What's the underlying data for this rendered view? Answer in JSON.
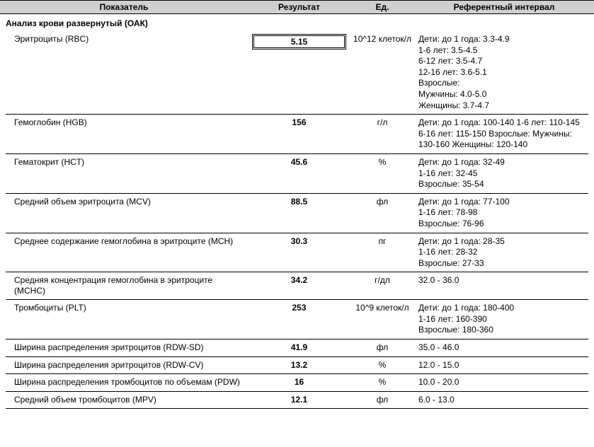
{
  "headers": {
    "param": "Показатель",
    "result": "Результат",
    "unit": "Ед.",
    "ref": "Референтный интервал"
  },
  "section_title": "Анализ крови развернутый (ОАК)",
  "rows": [
    {
      "param": "Эритроциты (RBC)",
      "result": "5.15",
      "boxed": true,
      "unit": "10^12 клеток/л",
      "ref": [
        "Дети: до 1 года: 3.3-4.9",
        "1-6 лет: 3.5-4.5",
        "6-12 лет: 3.5-4.7",
        "12-16 лет: 3.6-5.1",
        "Взрослые:",
        "Мужчины: 4.0-5.0",
        "Женщины: 3.7-4.7"
      ]
    },
    {
      "param": "Гемоглобин (HGB)",
      "result": "156",
      "boxed": false,
      "unit": "г/л",
      "ref": [
        "Дети: до 1 года: 100-140 1-6 лет: 110-145 6-16 лет: 115-150 Взрослые: Мужчины: 130-160 Женщины: 120-140"
      ]
    },
    {
      "param": "Гематокрит (HCT)",
      "result": "45.6",
      "boxed": false,
      "unit": "%",
      "ref": [
        "Дети: до 1 года: 32-49",
        "1-16 лет: 32-45",
        "Взрослые: 35-54"
      ]
    },
    {
      "param": "Средний объем эритроцита (MCV)",
      "result": "88.5",
      "boxed": false,
      "unit": "фл",
      "ref": [
        "Дети: до 1 года: 77-100",
        "1-16 лет: 78-98",
        "Взрослые: 76-96"
      ]
    },
    {
      "param": "Среднее содержание гемоглобина в эритроците (MCH)",
      "result": "30.3",
      "boxed": false,
      "unit": "пг",
      "ref": [
        "Дети: до 1 года: 28-35",
        "1-16 лет: 28-32",
        "Взрослые: 27-33"
      ]
    },
    {
      "param": "Средняя концентрация гемоглобина в эритроците (MCHC)",
      "result": "34.2",
      "boxed": false,
      "unit": "г/дл",
      "ref": [
        "32.0 - 36.0"
      ]
    },
    {
      "param": "Тромбоциты (PLT)",
      "result": "253",
      "boxed": false,
      "unit": "10^9 клеток/л",
      "ref": [
        "Дети: до 1 года: 180-400",
        "1-16 лет: 160-390",
        "Взрослые: 180-360"
      ]
    },
    {
      "param": "Ширина распределения эритроцитов (RDW-SD)",
      "result": "41.9",
      "boxed": false,
      "unit": "фл",
      "ref": [
        "35.0 - 46.0"
      ]
    },
    {
      "param": "Ширина распределения эритроцитов (RDW-CV)",
      "result": "13.2",
      "boxed": false,
      "unit": "%",
      "ref": [
        "12.0 - 15.0"
      ]
    },
    {
      "param": "Ширина распределения тромбоцитов по объемам (PDW)",
      "result": "16",
      "boxed": false,
      "unit": "%",
      "ref": [
        "10.0 - 20.0"
      ]
    },
    {
      "param": "Средний объем тромбоцитов (MPV)",
      "result": "12.1",
      "boxed": false,
      "unit": "фл",
      "ref": [
        "6.0 - 13.0"
      ]
    }
  ]
}
